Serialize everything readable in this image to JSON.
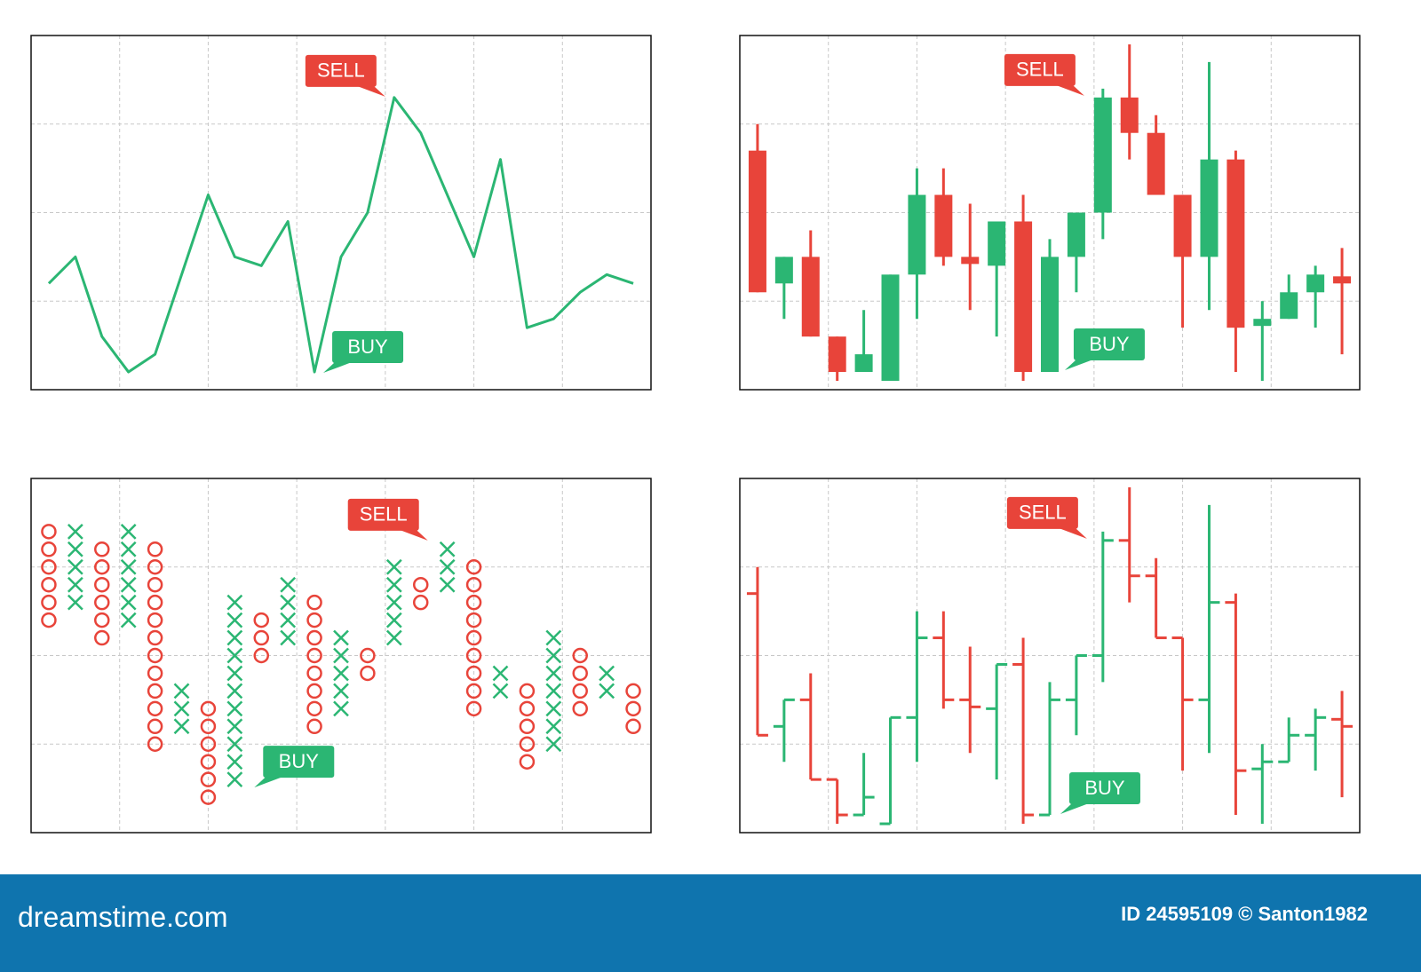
{
  "chart_data": [
    {
      "type": "line",
      "color": "#2bb673",
      "x": [
        0.2,
        0.5,
        0.8,
        1.1,
        1.4,
        2.0,
        2.3,
        2.6,
        2.9,
        3.2,
        3.5,
        3.8,
        4.1,
        4.4,
        5.0,
        5.3,
        5.6,
        5.9,
        6.2,
        6.5,
        6.8
      ],
      "values": [
        1.2,
        1.5,
        0.6,
        0.2,
        0.4,
        2.2,
        1.5,
        1.4,
        1.9,
        0.2,
        1.5,
        2.0,
        3.3,
        2.9,
        1.5,
        2.6,
        0.7,
        0.8,
        1.1,
        1.3,
        1.2
      ],
      "xlim": [
        0,
        7
      ],
      "ylim": [
        0,
        4
      ],
      "xticks": [
        1,
        2,
        3,
        4,
        5,
        6
      ],
      "yticks": [
        1,
        2,
        3
      ],
      "grid": true,
      "annotations": [
        {
          "text": "SELL",
          "x": 4.0,
          "y": 3.31,
          "color": "#e8443a",
          "placement": "upper-left"
        },
        {
          "text": "BUY",
          "x": 3.3,
          "y": 0.19,
          "color": "#2bb673",
          "placement": "upper-right"
        }
      ]
    },
    {
      "type": "candlestick",
      "up_color": "#2bb673",
      "down_color": "#e8443a",
      "x": [
        0.2,
        0.5,
        0.8,
        1.1,
        1.4,
        1.7,
        2.0,
        2.3,
        2.6,
        2.9,
        3.2,
        3.5,
        3.8,
        4.1,
        4.4,
        4.7,
        5.0,
        5.3,
        5.6,
        5.9,
        6.2,
        6.5,
        6.8
      ],
      "open": [
        2.7,
        1.2,
        1.5,
        0.6,
        0.2,
        0.1,
        1.3,
        2.2,
        1.5,
        1.4,
        1.9,
        0.2,
        1.5,
        2.0,
        3.3,
        2.9,
        2.2,
        1.5,
        2.6,
        0.72,
        0.8,
        1.1,
        1.28
      ],
      "high": [
        3.0,
        1.5,
        1.8,
        0.6,
        0.9,
        1.3,
        2.5,
        2.5,
        2.1,
        1.9,
        2.2,
        1.7,
        2.0,
        3.4,
        3.9,
        3.1,
        2.2,
        3.7,
        2.7,
        1.0,
        1.3,
        1.4,
        1.6
      ],
      "low": [
        1.1,
        0.8,
        0.6,
        0.1,
        0.2,
        0.1,
        0.8,
        1.4,
        0.9,
        0.6,
        0.1,
        0.2,
        1.1,
        1.7,
        2.6,
        2.2,
        0.7,
        0.9,
        0.2,
        0.1,
        0.8,
        0.7,
        0.4
      ],
      "close": [
        1.1,
        1.5,
        0.6,
        0.2,
        0.4,
        1.3,
        2.2,
        1.5,
        1.42,
        1.9,
        0.2,
        1.5,
        2.0,
        3.3,
        2.9,
        2.2,
        1.5,
        2.6,
        0.7,
        0.8,
        1.1,
        1.3,
        1.2
      ],
      "xlim": [
        0,
        7
      ],
      "ylim": [
        0,
        4
      ],
      "xticks": [
        1,
        2,
        3,
        4,
        5,
        6
      ],
      "yticks": [
        1,
        2,
        3
      ],
      "grid": true,
      "annotations": [
        {
          "text": "SELL",
          "x": 3.89,
          "y": 3.32,
          "color": "#e8443a",
          "placement": "upper-left"
        },
        {
          "text": "BUY",
          "x": 3.67,
          "y": 0.22,
          "color": "#2bb673",
          "placement": "upper-right"
        }
      ]
    },
    {
      "type": "point_and_figure",
      "up_color": "#2bb673",
      "down_color": "#e8443a",
      "box_size": 0.2,
      "x": [
        0.2,
        0.5,
        0.8,
        1.1,
        1.4,
        1.7,
        2.0,
        2.3,
        2.6,
        2.9,
        3.2,
        3.5,
        3.8,
        4.1,
        4.4,
        4.7,
        5.0,
        5.3,
        5.6,
        5.9,
        6.2,
        6.5,
        6.8
      ],
      "columns": [
        "O",
        "X",
        "O",
        "X",
        "O",
        "X",
        "O",
        "X",
        "O",
        "X",
        "O",
        "X",
        "O",
        "X",
        "O",
        "X",
        "O",
        "X",
        "O",
        "X",
        "O",
        "X",
        "O"
      ],
      "high": [
        3.4,
        3.4,
        3.2,
        3.4,
        3.2,
        1.6,
        1.4,
        2.6,
        2.4,
        2.8,
        2.6,
        2.2,
        2.0,
        3.0,
        2.8,
        3.2,
        3.0,
        1.8,
        1.6,
        2.2,
        2.0,
        1.8,
        1.6
      ],
      "low": [
        2.4,
        2.6,
        2.2,
        2.4,
        1.0,
        1.2,
        0.4,
        0.6,
        2.0,
        2.2,
        1.2,
        1.4,
        1.8,
        2.2,
        2.6,
        2.8,
        1.4,
        1.6,
        0.8,
        1.0,
        1.4,
        1.6,
        1.2
      ],
      "xlim": [
        0,
        7
      ],
      "ylim": [
        0,
        4
      ],
      "xticks": [
        1,
        2,
        3,
        4,
        5,
        6
      ],
      "yticks": [
        1,
        2,
        3
      ],
      "grid": true,
      "annotations": [
        {
          "text": "SELL",
          "x": 4.48,
          "y": 3.3,
          "color": "#e8443a",
          "placement": "upper-left"
        },
        {
          "text": "BUY",
          "x": 2.52,
          "y": 0.51,
          "color": "#2bb673",
          "placement": "upper-right"
        }
      ]
    },
    {
      "type": "ohlc",
      "up_color": "#2bb673",
      "down_color": "#e8443a",
      "x": [
        0.2,
        0.5,
        0.8,
        1.1,
        1.4,
        1.7,
        2.0,
        2.3,
        2.6,
        2.9,
        3.2,
        3.5,
        3.8,
        4.1,
        4.4,
        4.7,
        5.0,
        5.3,
        5.6,
        5.9,
        6.2,
        6.5,
        6.8
      ],
      "open": [
        2.7,
        1.2,
        1.5,
        0.6,
        0.2,
        0.1,
        1.3,
        2.2,
        1.5,
        1.4,
        1.9,
        0.2,
        1.5,
        2.0,
        3.3,
        2.9,
        2.2,
        1.5,
        2.6,
        0.72,
        0.8,
        1.1,
        1.28
      ],
      "high": [
        3.0,
        1.5,
        1.8,
        0.6,
        0.9,
        1.3,
        2.5,
        2.5,
        2.1,
        1.9,
        2.2,
        1.7,
        2.0,
        3.4,
        3.9,
        3.1,
        2.2,
        3.7,
        2.7,
        1.0,
        1.3,
        1.4,
        1.6
      ],
      "low": [
        1.1,
        0.8,
        0.6,
        0.1,
        0.2,
        0.1,
        0.8,
        1.4,
        0.9,
        0.6,
        0.1,
        0.2,
        1.1,
        1.7,
        2.6,
        2.2,
        0.7,
        0.9,
        0.2,
        0.1,
        0.8,
        0.7,
        0.4
      ],
      "close": [
        1.1,
        1.5,
        0.6,
        0.2,
        0.4,
        1.3,
        2.2,
        1.5,
        1.42,
        1.9,
        0.2,
        1.5,
        2.0,
        3.3,
        2.9,
        2.2,
        1.5,
        2.6,
        0.7,
        0.8,
        1.1,
        1.3,
        1.2
      ],
      "xlim": [
        0,
        7
      ],
      "ylim": [
        0,
        4
      ],
      "xticks": [
        1,
        2,
        3,
        4,
        5,
        6
      ],
      "yticks": [
        1,
        2,
        3
      ],
      "grid": true,
      "annotations": [
        {
          "text": "SELL",
          "x": 3.92,
          "y": 3.32,
          "color": "#e8443a",
          "placement": "upper-left"
        },
        {
          "text": "BUY",
          "x": 3.62,
          "y": 0.21,
          "color": "#2bb673",
          "placement": "upper-right"
        }
      ]
    }
  ],
  "footer": {
    "brand": "dreamstime.com",
    "credit": "ID 24595109 © Santon1982"
  }
}
